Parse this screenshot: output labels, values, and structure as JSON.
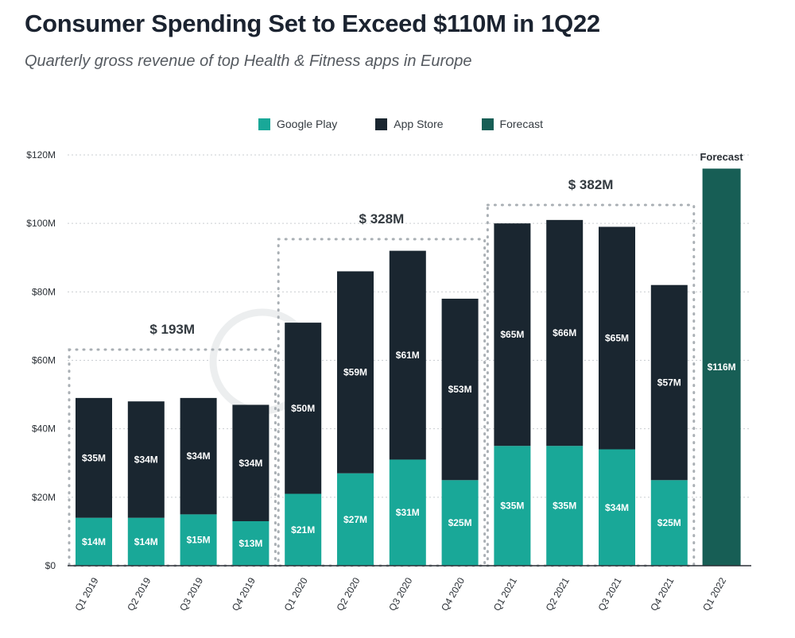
{
  "header": {
    "title": "Consumer Spending Set to Exceed $110M in 1Q22",
    "subtitle": "Quarterly gross revenue of top Health & Fitness apps in Europe"
  },
  "legend": [
    {
      "label": "Google Play",
      "color": "#19a898"
    },
    {
      "label": "App Store",
      "color": "#1a2630"
    },
    {
      "label": "Forecast",
      "color": "#175e55"
    }
  ],
  "chart_data": {
    "type": "bar",
    "stacked": true,
    "title": "Consumer Spending Set to Exceed $110M in 1Q22",
    "subtitle": "Quarterly gross revenue of top Health & Fitness apps in Europe",
    "xlabel": "",
    "ylabel": "",
    "ylim": [
      0,
      120
    ],
    "y_ticks": [
      0,
      20,
      40,
      60,
      80,
      100,
      120
    ],
    "y_tick_labels": [
      "$0",
      "$20M",
      "$40M",
      "$60M",
      "$80M",
      "$100M",
      "$120M"
    ],
    "grid": true,
    "legend_position": "top-center",
    "categories": [
      "Q1 2019",
      "Q2 2019",
      "Q3 2019",
      "Q4 2019",
      "Q1 2020",
      "Q2 2020",
      "Q3 2020",
      "Q4 2020",
      "Q1 2021",
      "Q2 2021",
      "Q3 2021",
      "Q4 2021",
      "Q1 2022"
    ],
    "series": [
      {
        "name": "Google Play",
        "color": "#19a898",
        "values": [
          14,
          14,
          15,
          13,
          21,
          27,
          31,
          25,
          35,
          35,
          34,
          25,
          null
        ],
        "labels": [
          "$14M",
          "$14M",
          "$15M",
          "$13M",
          "$21M",
          "$27M",
          "$31M",
          "$25M",
          "$35M",
          "$35M",
          "$34M",
          "$25M",
          null
        ]
      },
      {
        "name": "App Store",
        "color": "#1a2630",
        "values": [
          35,
          34,
          34,
          34,
          50,
          59,
          61,
          53,
          65,
          66,
          65,
          57,
          null
        ],
        "labels": [
          "$35M",
          "$34M",
          "$34M",
          "$34M",
          "$50M",
          "$59M",
          "$61M",
          "$53M",
          "$65M",
          "$66M",
          "$65M",
          "$57M",
          null
        ]
      },
      {
        "name": "Forecast",
        "color": "#175e55",
        "values": [
          null,
          null,
          null,
          null,
          null,
          null,
          null,
          null,
          null,
          null,
          null,
          null,
          116
        ],
        "labels": [
          null,
          null,
          null,
          null,
          null,
          null,
          null,
          null,
          null,
          null,
          null,
          null,
          "$116M"
        ]
      }
    ],
    "annotations": [
      {
        "text": "$ 193M",
        "group": [
          "Q1 2019",
          "Q4 2019"
        ]
      },
      {
        "text": "$ 328M",
        "group": [
          "Q1 2020",
          "Q4 2020"
        ]
      },
      {
        "text": "$ 382M",
        "group": [
          "Q1 2021",
          "Q4 2021"
        ]
      },
      {
        "text": "Forecast",
        "group": [
          "Q1 2022",
          "Q1 2022"
        ]
      }
    ]
  }
}
